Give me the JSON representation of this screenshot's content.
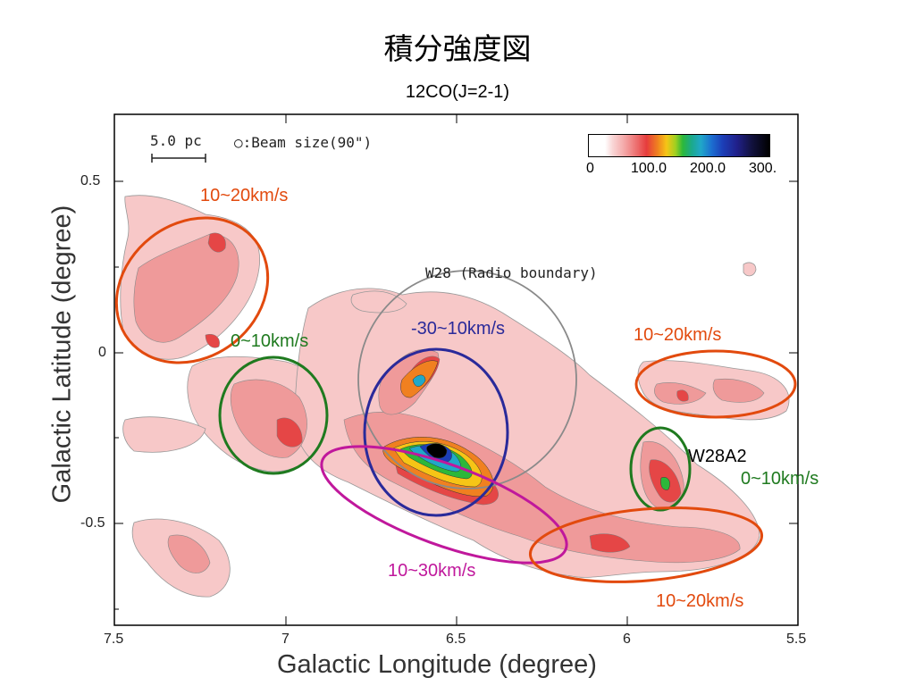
{
  "title": "積分強度図",
  "subtitle": "12CO(J=2-1)",
  "axes": {
    "ylabel": "Galactic Latitude (degree)",
    "xlabel": "Galactic Longitude (degree)",
    "yticks": [
      "0.5",
      "0",
      "-0.5"
    ],
    "xticks": [
      "7.5",
      "7",
      "6.5",
      "6",
      "5.5"
    ]
  },
  "scale": {
    "scalebar": "5.0 pc",
    "beam": "○:Beam size(90\")"
  },
  "colorbar": {
    "ticks": [
      "0",
      "100.0",
      "200.0",
      "300."
    ]
  },
  "annotations": {
    "w28_boundary": "W28 (Radio boundary)",
    "w28a2": "W28A2",
    "region_nw": "10~20km/s",
    "region_w_green": "0~10km/s",
    "region_center_blue": "-30~10km/s",
    "region_e_upper": "10~20km/s",
    "region_w28a2": "0~10km/s",
    "region_magenta": "10~30km/s",
    "region_se": "10~20km/s"
  },
  "colors": {
    "orange": "#e24a0e",
    "green": "#1f7a1f",
    "blue": "#2a2a9a",
    "magenta": "#c0189c",
    "gray": "#8a8a8a"
  }
}
